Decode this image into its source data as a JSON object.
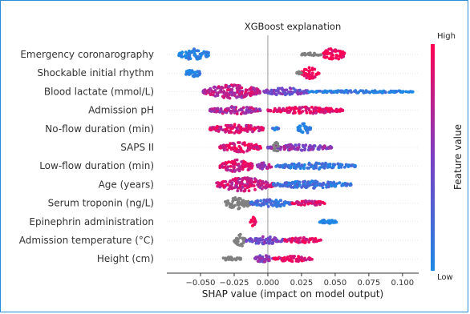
{
  "chart_data": {
    "type": "scatter",
    "subtype": "shap-beeswarm",
    "title": "XGBoost explanation",
    "xlabel": "SHAP value (impact on model output)",
    "xlim": [
      -0.075,
      0.112
    ],
    "xticks": [
      "−0.050",
      "−0.025",
      "0.000",
      "0.025",
      "0.050",
      "0.075",
      "0.100"
    ],
    "xtick_values": [
      -0.05,
      -0.025,
      0,
      0.025,
      0.05,
      0.075,
      0.1
    ],
    "colorbar": {
      "high": "High",
      "low": "Low",
      "label": "Feature value",
      "low_color": "#1e88e5",
      "high_color": "#ff0052",
      "missing_color": "#808080"
    },
    "features": [
      {
        "name": "Emergency coronarography",
        "clusters": [
          {
            "from": -0.066,
            "to": -0.043,
            "c": 0.0,
            "w": 0.8
          },
          {
            "from": 0.04,
            "to": 0.057,
            "c": 1.0,
            "w": 0.9
          },
          {
            "from": 0.025,
            "to": 0.04,
            "c": 0.0,
            "w": 0.25,
            "gray": true
          }
        ]
      },
      {
        "name": "Shockable initial rhythm",
        "clusters": [
          {
            "from": -0.062,
            "to": -0.049,
            "c": 0.0,
            "w": 0.6
          },
          {
            "from": 0.025,
            "to": 0.038,
            "c": 1.0,
            "w": 0.85
          },
          {
            "from": 0.021,
            "to": 0.025,
            "c": 0.0,
            "w": 0.2,
            "gray": true
          }
        ]
      },
      {
        "name": "Blood lactate (mmol/L)",
        "clusters": [
          {
            "from": -0.048,
            "to": -0.005,
            "c": 0.75,
            "w": 1.0
          },
          {
            "from": -0.003,
            "to": 0.03,
            "c": 0.45,
            "w": 0.55
          },
          {
            "from": 0.03,
            "to": 0.108,
            "c": 0.05,
            "w": 0.2
          }
        ]
      },
      {
        "name": "Admission pH",
        "clusters": [
          {
            "from": -0.043,
            "to": -0.005,
            "c": 0.7,
            "w": 0.6
          },
          {
            "from": 0.0,
            "to": 0.056,
            "c": 0.9,
            "w": 0.5
          }
        ]
      },
      {
        "name": "No-flow duration (min)",
        "clusters": [
          {
            "from": -0.043,
            "to": -0.003,
            "c": 0.85,
            "w": 0.65
          },
          {
            "from": 0.003,
            "to": 0.008,
            "c": 0.1,
            "w": 0.3
          },
          {
            "from": 0.022,
            "to": 0.032,
            "c": 0.0,
            "w": 0.8
          }
        ]
      },
      {
        "name": "SAPS II",
        "clusters": [
          {
            "from": -0.036,
            "to": -0.005,
            "c": 0.9,
            "w": 0.75
          },
          {
            "from": 0.0,
            "to": 0.048,
            "c": 0.55,
            "w": 0.45
          },
          {
            "from": 0.004,
            "to": 0.008,
            "c": 0.0,
            "w": 0.9,
            "gray": true
          }
        ]
      },
      {
        "name": "Low-flow duration (min)",
        "clusters": [
          {
            "from": -0.036,
            "to": -0.01,
            "c": 0.85,
            "w": 0.9
          },
          {
            "from": -0.008,
            "to": 0.004,
            "c": 0.65,
            "w": 0.5
          },
          {
            "from": 0.006,
            "to": 0.065,
            "c": 0.1,
            "w": 0.45
          }
        ]
      },
      {
        "name": "Age (years)",
        "clusters": [
          {
            "from": -0.038,
            "to": 0.004,
            "c": 0.8,
            "w": 1.0
          },
          {
            "from": 0.004,
            "to": 0.062,
            "c": 0.15,
            "w": 0.55
          }
        ]
      },
      {
        "name": "Serum troponin (ng/L)",
        "clusters": [
          {
            "from": -0.032,
            "to": -0.013,
            "c": 0.0,
            "w": 0.9,
            "gray": true
          },
          {
            "from": -0.013,
            "to": 0.018,
            "c": 0.2,
            "w": 0.6
          },
          {
            "from": 0.018,
            "to": 0.043,
            "c": 0.85,
            "w": 0.35
          }
        ]
      },
      {
        "name": "Epinephrin administration",
        "clusters": [
          {
            "from": -0.014,
            "to": -0.009,
            "c": 1.0,
            "w": 0.75
          },
          {
            "from": 0.037,
            "to": 0.052,
            "c": 0.0,
            "w": 0.3
          }
        ]
      },
      {
        "name": "Admission temperature (°C)",
        "clusters": [
          {
            "from": -0.025,
            "to": -0.016,
            "c": 0.0,
            "w": 0.9,
            "gray": true
          },
          {
            "from": -0.016,
            "to": 0.012,
            "c": 0.45,
            "w": 0.55
          },
          {
            "from": 0.012,
            "to": 0.04,
            "c": 0.9,
            "w": 0.4
          }
        ]
      },
      {
        "name": "Height (cm)",
        "clusters": [
          {
            "from": -0.034,
            "to": -0.02,
            "c": 0.0,
            "w": 0.35,
            "gray": true
          },
          {
            "from": -0.01,
            "to": 0.004,
            "c": 0.55,
            "w": 0.55
          },
          {
            "from": 0.004,
            "to": 0.033,
            "c": 0.9,
            "w": 0.4
          }
        ]
      }
    ]
  }
}
